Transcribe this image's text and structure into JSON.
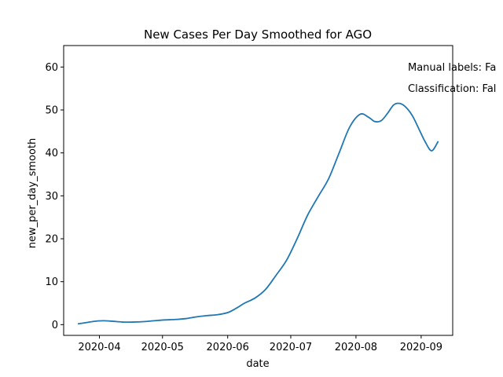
{
  "chart_data": {
    "type": "line",
    "title": "New Cases Per Day Smoothed for AGO",
    "xlabel": "date",
    "ylabel": "new_per_day_smooth",
    "x_type": "date",
    "xlim": [
      "2020-03-15",
      "2020-09-16"
    ],
    "ylim": [
      -2.5,
      65
    ],
    "x_ticks": [
      "2020-04-01",
      "2020-05-01",
      "2020-06-01",
      "2020-07-01",
      "2020-08-01",
      "2020-09-01"
    ],
    "x_tick_labels": [
      "2020-04",
      "2020-05",
      "2020-06",
      "2020-07",
      "2020-08",
      "2020-09"
    ],
    "y_ticks": [
      0,
      10,
      20,
      30,
      40,
      50,
      60
    ],
    "y_tick_labels": [
      "0",
      "10",
      "20",
      "30",
      "40",
      "50",
      "60"
    ],
    "grid": false,
    "legend": "none",
    "annotations": [
      "Manual labels: Fa",
      "Classification: Fal"
    ],
    "series": [
      {
        "color": "#1f77b4",
        "x": [
          "2020-03-22",
          "2020-03-26",
          "2020-03-30",
          "2020-04-03",
          "2020-04-07",
          "2020-04-12",
          "2020-04-17",
          "2020-04-22",
          "2020-04-27",
          "2020-05-02",
          "2020-05-07",
          "2020-05-12",
          "2020-05-17",
          "2020-05-22",
          "2020-05-27",
          "2020-06-01",
          "2020-06-05",
          "2020-06-09",
          "2020-06-14",
          "2020-06-19",
          "2020-06-24",
          "2020-06-29",
          "2020-07-04",
          "2020-07-09",
          "2020-07-14",
          "2020-07-19",
          "2020-07-24",
          "2020-07-29",
          "2020-08-03",
          "2020-08-07",
          "2020-08-10",
          "2020-08-13",
          "2020-08-16",
          "2020-08-19",
          "2020-08-22",
          "2020-08-25",
          "2020-08-28",
          "2020-08-31",
          "2020-09-03",
          "2020-09-06",
          "2020-09-09"
        ],
        "y": [
          0.2,
          0.5,
          0.8,
          0.9,
          0.8,
          0.6,
          0.6,
          0.7,
          0.9,
          1.1,
          1.2,
          1.4,
          1.8,
          2.1,
          2.3,
          2.8,
          3.8,
          5.0,
          6.2,
          8.2,
          11.5,
          15.0,
          20.0,
          25.5,
          29.8,
          34.0,
          40.0,
          46.0,
          49.0,
          48.3,
          47.3,
          47.5,
          49.2,
          51.2,
          51.5,
          50.5,
          48.5,
          45.5,
          42.5,
          40.5,
          42.6
        ]
      }
    ]
  }
}
